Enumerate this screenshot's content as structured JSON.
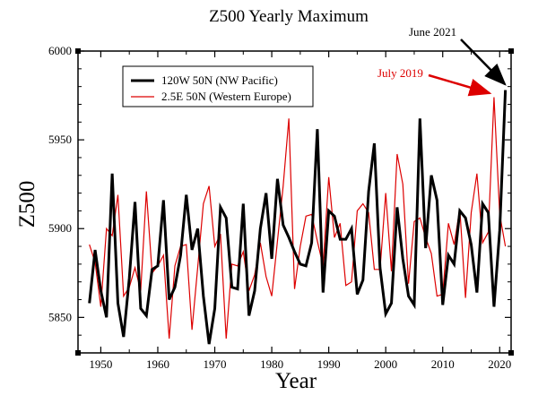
{
  "chart_data": {
    "type": "line",
    "title": "Z500 Yearly Maximum",
    "xlabel": "Year",
    "ylabel": "Z500",
    "xlim": [
      1946,
      2022
    ],
    "ylim": [
      5830,
      6000
    ],
    "x_ticks": [
      1950,
      1960,
      1970,
      1980,
      1990,
      2000,
      2010,
      2020
    ],
    "x_tick_labels": [
      "1950",
      "1960",
      "1970",
      "1980",
      "1990",
      "2000",
      "2010",
      "2020"
    ],
    "y_ticks": [
      5850,
      5900,
      5950,
      6000
    ],
    "y_tick_labels": [
      "5850",
      "5900",
      "5950",
      "6000"
    ],
    "grid": false,
    "legend_position": "top-left",
    "series": [
      {
        "name": "120W 50N (NW Pacific)",
        "color": "#000000",
        "x": [
          1948,
          1949,
          1950,
          1951,
          1952,
          1953,
          1954,
          1955,
          1956,
          1957,
          1958,
          1959,
          1960,
          1961,
          1962,
          1963,
          1964,
          1965,
          1966,
          1967,
          1968,
          1969,
          1970,
          1971,
          1972,
          1973,
          1974,
          1975,
          1976,
          1977,
          1978,
          1979,
          1980,
          1981,
          1982,
          1983,
          1984,
          1985,
          1986,
          1987,
          1988,
          1989,
          1990,
          1991,
          1992,
          1993,
          1994,
          1995,
          1996,
          1997,
          1998,
          1999,
          2000,
          2001,
          2002,
          2003,
          2004,
          2005,
          2006,
          2007,
          2008,
          2009,
          2010,
          2011,
          2012,
          2013,
          2014,
          2015,
          2016,
          2017,
          2018,
          2019,
          2020,
          2021
        ],
        "y": [
          5858,
          5888,
          5865,
          5850,
          5931,
          5858,
          5839,
          5872,
          5915,
          5855,
          5851,
          5877,
          5879,
          5916,
          5860,
          5867,
          5885,
          5919,
          5888,
          5900,
          5862,
          5835,
          5855,
          5912,
          5906,
          5867,
          5866,
          5914,
          5851,
          5865,
          5900,
          5920,
          5883,
          5928,
          5902,
          5895,
          5887,
          5880,
          5879,
          5892,
          5956,
          5864,
          5910,
          5907,
          5894,
          5894,
          5900,
          5863,
          5871,
          5921,
          5948,
          5878,
          5852,
          5858,
          5912,
          5883,
          5862,
          5857,
          5962,
          5889,
          5930,
          5916,
          5857,
          5885,
          5880,
          5910,
          5906,
          5891,
          5864,
          5914,
          5909,
          5856,
          5899,
          5978
        ]
      },
      {
        "name": "2.5E 50N (Western Europe)",
        "color": "#dd0000",
        "x": [
          1948,
          1949,
          1950,
          1951,
          1952,
          1953,
          1954,
          1955,
          1956,
          1957,
          1958,
          1959,
          1960,
          1961,
          1962,
          1963,
          1964,
          1965,
          1966,
          1967,
          1968,
          1969,
          1970,
          1971,
          1972,
          1973,
          1974,
          1975,
          1976,
          1977,
          1978,
          1979,
          1980,
          1981,
          1982,
          1983,
          1984,
          1985,
          1986,
          1987,
          1988,
          1989,
          1990,
          1991,
          1992,
          1993,
          1994,
          1995,
          1996,
          1997,
          1998,
          1999,
          2000,
          2001,
          2002,
          2003,
          2004,
          2005,
          2006,
          2007,
          2008,
          2009,
          2010,
          2011,
          2012,
          2013,
          2014,
          2015,
          2016,
          2017,
          2018,
          2019,
          2020,
          2021
        ],
        "y": [
          5891,
          5881,
          5856,
          5900,
          5896,
          5919,
          5862,
          5867,
          5878,
          5865,
          5921,
          5875,
          5879,
          5885,
          5838,
          5879,
          5890,
          5891,
          5843,
          5878,
          5914,
          5924,
          5890,
          5897,
          5838,
          5880,
          5879,
          5887,
          5865,
          5874,
          5892,
          5873,
          5862,
          5893,
          5924,
          5962,
          5866,
          5890,
          5907,
          5908,
          5893,
          5879,
          5929,
          5895,
          5903,
          5868,
          5870,
          5910,
          5914,
          5909,
          5877,
          5877,
          5920,
          5876,
          5942,
          5925,
          5869,
          5904,
          5906,
          5895,
          5886,
          5862,
          5863,
          5903,
          5891,
          5911,
          5861,
          5909,
          5931,
          5892,
          5898,
          5974,
          5908,
          5890
        ]
      }
    ],
    "annotations": [
      {
        "text": "June 2021",
        "color": "#000000",
        "x": 2021,
        "y": 5979
      },
      {
        "text": "July 2019",
        "color": "#dd0000",
        "x": 2019,
        "y": 5975
      }
    ]
  }
}
